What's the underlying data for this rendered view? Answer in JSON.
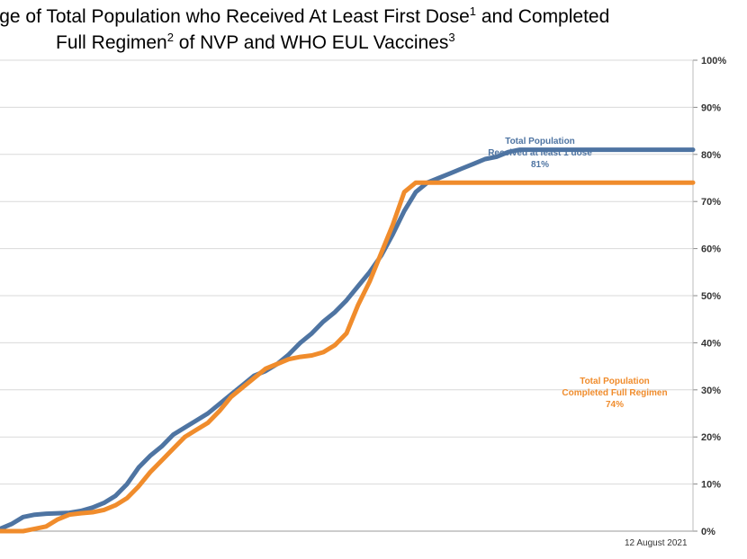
{
  "title": {
    "line1_pre": "ntage of Total Population who Received At Least First Dose",
    "line1_sup1": "1",
    "line1_mid": " and Completed",
    "line2_pre": "Full Regimen",
    "line2_sup2": "2",
    "line2_mid": "  of NVP and WHO EUL Vaccines",
    "line2_sup3": "3"
  },
  "date_label": "12 August 2021",
  "colors": {
    "first_dose": "#4e74a2",
    "full_regimen": "#f08c2c",
    "grid": "#d9d9d9"
  },
  "chart_data": {
    "type": "line",
    "ylim": [
      0,
      100
    ],
    "yticks": [
      "0%",
      "10%",
      "20%",
      "30%",
      "40%",
      "50%",
      "60%",
      "70%",
      "80%",
      "90%",
      "100%"
    ],
    "grid": true,
    "x": [
      0,
      1,
      2,
      3,
      4,
      5,
      6,
      7,
      8,
      9,
      10,
      11,
      12,
      13,
      14,
      15,
      16,
      17,
      18,
      19,
      20,
      21,
      22,
      23,
      24,
      25,
      26,
      27,
      28,
      29,
      30,
      31,
      32,
      33,
      34,
      35,
      36,
      37,
      38,
      39,
      40,
      41,
      42,
      43,
      44,
      45,
      46,
      47,
      48,
      49,
      50,
      51,
      52,
      53,
      54,
      55,
      56,
      57,
      58,
      59,
      60
    ],
    "series": [
      {
        "name": "first_dose",
        "values": [
          0.5,
          1.5,
          3,
          3.5,
          3.7,
          3.8,
          3.9,
          4.3,
          5,
          6,
          7.5,
          10,
          13.5,
          16,
          18,
          20.5,
          22,
          23.5,
          25,
          27,
          29,
          31,
          33,
          34,
          35.5,
          37.5,
          40,
          42,
          44.5,
          46.5,
          49,
          52,
          55,
          58.5,
          63,
          68,
          72,
          74,
          75,
          76,
          77,
          78,
          79,
          79.5,
          80.5,
          81,
          81,
          81,
          81,
          81,
          81,
          81,
          81,
          81,
          81,
          81,
          81,
          81,
          81,
          81,
          81
        ],
        "label_lines": [
          "Total Population",
          "Received at least 1 dose",
          "81%"
        ]
      },
      {
        "name": "full_regimen",
        "values": [
          0,
          0,
          0,
          0.5,
          1,
          2.5,
          3.5,
          3.8,
          4,
          4.5,
          5.5,
          7,
          9.5,
          12.5,
          15,
          17.5,
          20,
          21.5,
          23,
          25.5,
          28.5,
          30.5,
          32.5,
          34.5,
          35.5,
          36.5,
          37,
          37.3,
          38,
          39.5,
          42,
          48,
          53,
          59,
          65,
          72,
          74,
          74,
          74,
          74,
          74,
          74,
          74,
          74,
          74,
          74,
          74,
          74,
          74,
          74,
          74,
          74,
          74,
          74,
          74,
          74,
          74,
          74,
          74,
          74,
          74
        ],
        "label_lines": [
          "Total Population",
          "Completed Full Regimen",
          "74%"
        ]
      }
    ]
  }
}
